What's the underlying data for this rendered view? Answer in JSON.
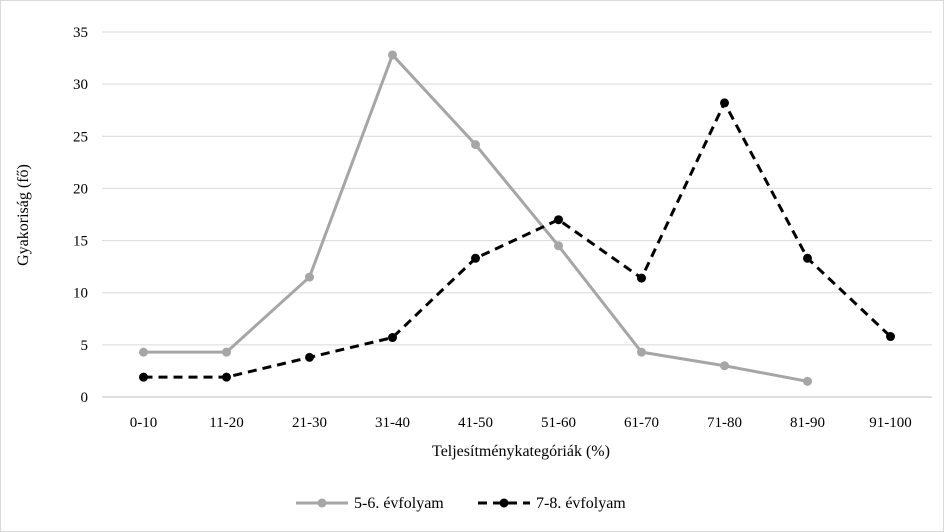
{
  "chart_data": {
    "type": "line",
    "title": "",
    "xlabel": "Teljesítménykategóriák (%)",
    "ylabel": "Gyakoriság (fő)",
    "categories": [
      "0-10",
      "11-20",
      "21-30",
      "31-40",
      "41-50",
      "51-60",
      "61-70",
      "71-80",
      "81-90",
      "91-100"
    ],
    "ylim": [
      0,
      35
    ],
    "yticks": [
      "0",
      "5",
      "10",
      "15",
      "20",
      "25",
      "30",
      "35"
    ],
    "grid": true,
    "legend_position": "bottom",
    "series": [
      {
        "name": "5-6. évfolyam",
        "color": "#a6a6a6",
        "line_style": "solid",
        "values": [
          4.3,
          4.3,
          11.5,
          32.8,
          24.2,
          14.5,
          4.3,
          3.0,
          1.5,
          null
        ]
      },
      {
        "name": "7-8. évfolyam",
        "color": "#000000",
        "line_style": "dashed",
        "values": [
          1.9,
          1.9,
          3.8,
          5.7,
          13.3,
          17.0,
          11.4,
          28.2,
          13.3,
          5.8
        ]
      }
    ]
  }
}
